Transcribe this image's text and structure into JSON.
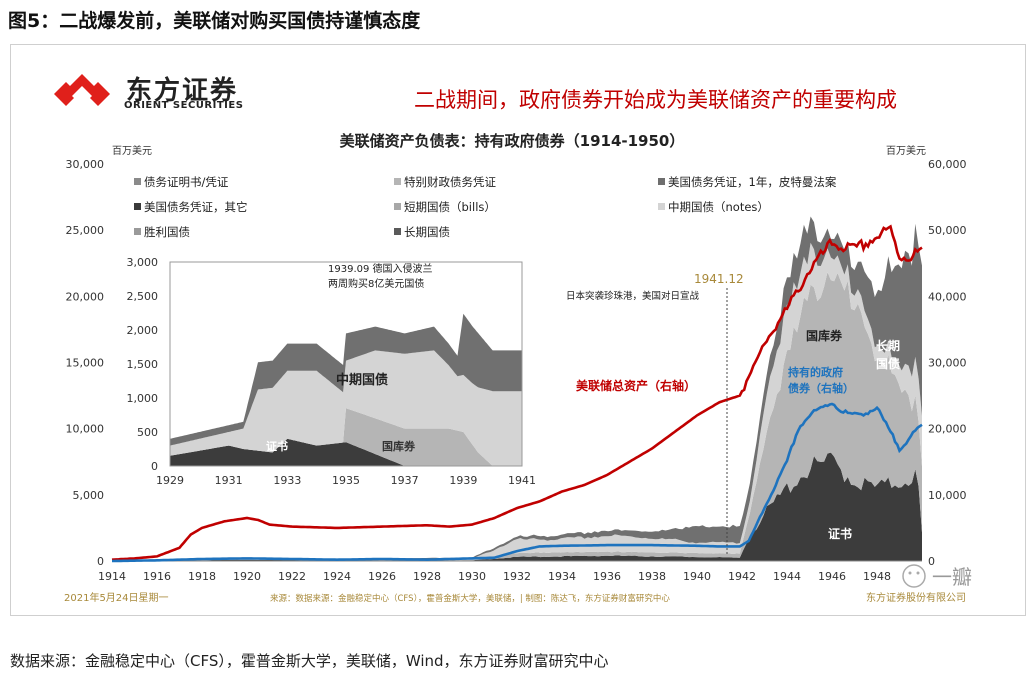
{
  "figure_title": "图5：二战爆发前，美联储对购买国债持谨慎态度",
  "logo": {
    "name_cn": "东方证券",
    "name_en": "ORIENT SECURITIES",
    "icon": "orient-securities-logo-icon",
    "color": "#e0201b"
  },
  "headline": "二战期间，政府债券开始成为美联储资产的重要构成",
  "source_note": "数据来源：金融稳定中心（CFS），霍普金斯大学，美联储，Wind，东方证券财富研究中心",
  "footer": {
    "date": "2021年5月24日星期一",
    "source": "来源：数据来源：金融稳定中心（CFS），霍普金斯大学，美联储，| 制图：陈达飞，东方证券财富研究中心",
    "company": "东方证券股份有限公司"
  },
  "watermark": "一瓣",
  "chart_data": [
    {
      "type": "area",
      "title": "美联储资产负债表：持有政府债券（1914-1950）",
      "left_unit": "百万美元",
      "right_unit": "百万美元",
      "ylim": [
        0,
        30000
      ],
      "y2lim": [
        0,
        60000
      ],
      "xlim": [
        1914,
        1950
      ],
      "x_ticks": [
        1914,
        1916,
        1918,
        1920,
        1922,
        1924,
        1926,
        1928,
        1930,
        1932,
        1934,
        1936,
        1938,
        1940,
        1942,
        1944,
        1946,
        1948
      ],
      "y_ticks": [
        0,
        5000,
        10000,
        15000,
        20000,
        25000,
        30000
      ],
      "y_tick_labels": [
        "0",
        "5,000",
        "10,000",
        "15,000",
        "20,000",
        "25,000",
        "30,000"
      ],
      "y2_ticks": [
        0,
        10000,
        20000,
        30000,
        40000,
        50000,
        60000
      ],
      "y2_tick_labels": [
        "0",
        "10,000",
        "20,000",
        "30,000",
        "40,000",
        "50,000",
        "60,000"
      ],
      "legend": [
        {
          "label": "债务证明书/凭证",
          "color": "#8a8a8a"
        },
        {
          "label": "特别财政债务凭证",
          "color": "#b5b5b5"
        },
        {
          "label": "美国债务凭证，1年，皮特曼法案",
          "color": "#6e6e6e"
        },
        {
          "label": "美国债务凭证，其它",
          "color": "#3a3a3a"
        },
        {
          "label": "短期国债（bills）",
          "color": "#a8a8a8"
        },
        {
          "label": "中期国债（notes）",
          "color": "#d4d4d4"
        },
        {
          "label": "胜利国债",
          "color": "#9a9a9a"
        },
        {
          "label": "长期国债",
          "color": "#5a5a5a"
        }
      ],
      "legend_placement": "top-left",
      "series": [
        {
          "name": "证书",
          "color": "#3c3c3c",
          "x": [
            1914,
            1917,
            1920,
            1925,
            1930,
            1932,
            1936,
            1940,
            1941.9,
            1942.3,
            1943,
            1944,
            1945,
            1946,
            1947,
            1948,
            1949,
            1949.8,
            1950
          ],
          "values": [
            0,
            50,
            100,
            50,
            50,
            300,
            400,
            300,
            250,
            1800,
            3500,
            5500,
            7000,
            7500,
            6000,
            5500,
            6000,
            6500,
            2000
          ]
        },
        {
          "name": "国库券",
          "color": "#b5b5b5",
          "x": [
            1914,
            1930,
            1932,
            1934,
            1936,
            1938,
            1940,
            1941.9,
            1942.3,
            1943,
            1944,
            1945,
            1946,
            1947,
            1948,
            1949,
            1950
          ],
          "values": [
            0,
            0,
            300,
            300,
            300,
            300,
            300,
            300,
            1500,
            5500,
            10000,
            13000,
            14000,
            13000,
            10000,
            7000,
            5000
          ]
        },
        {
          "name": "中期国债",
          "color": "#d4d4d4",
          "x": [
            1914,
            1930,
            1932,
            1934,
            1936,
            1938,
            1940,
            1941.9,
            1942.3,
            1943,
            1944,
            1945,
            1946,
            1947,
            1948,
            1949,
            1950
          ],
          "values": [
            0,
            100,
            1000,
            1000,
            1200,
            1100,
            800,
            800,
            900,
            2500,
            3800,
            3000,
            1500,
            1200,
            1000,
            1500,
            3500
          ]
        },
        {
          "name": "长期国债",
          "color": "#707070",
          "x": [
            1914,
            1930,
            1932,
            1934,
            1936,
            1938,
            1940,
            1941.9,
            1942.3,
            1943,
            1944,
            1945,
            1946,
            1947,
            1948,
            1949,
            1950
          ],
          "values": [
            0,
            100,
            200,
            300,
            400,
            500,
            1200,
            1200,
            1200,
            1500,
            2000,
            2200,
            1500,
            1800,
            4500,
            7000,
            11500
          ]
        }
      ],
      "lines": [
        {
          "name": "美联储总资产（右轴）",
          "axis": "right",
          "color": "#c00000",
          "x": [
            1914,
            1915,
            1916,
            1917,
            1917.5,
            1918,
            1919,
            1920,
            1920.5,
            1921,
            1922,
            1924,
            1926,
            1928,
            1929,
            1930,
            1931,
            1932,
            1933,
            1934,
            1935,
            1936,
            1937,
            1938,
            1939,
            1940,
            1941,
            1941.9,
            1942.5,
            1943,
            1944,
            1945,
            1946,
            1947,
            1948,
            1948.6,
            1949,
            1949.5,
            1950
          ],
          "values": [
            200,
            400,
            700,
            2000,
            4000,
            5000,
            6000,
            6500,
            6200,
            5500,
            5200,
            5000,
            5200,
            5400,
            5200,
            5500,
            6500,
            8000,
            9000,
            10500,
            11500,
            13000,
            15000,
            17000,
            19500,
            22000,
            24000,
            25000,
            29000,
            33000,
            38000,
            44000,
            48000,
            47000,
            49000,
            50000,
            46000,
            46000,
            47000
          ]
        },
        {
          "name": "持有的政府债券（右轴）",
          "axis": "right",
          "color": "#1e73be",
          "x": [
            1914,
            1916,
            1918,
            1920,
            1922,
            1924,
            1926,
            1928,
            1930,
            1931,
            1932,
            1933,
            1934,
            1936,
            1938,
            1940,
            1941,
            1941.9,
            1942.3,
            1943,
            1944,
            1944.5,
            1945,
            1946,
            1946.5,
            1947,
            1948,
            1948.5,
            1949,
            1950
          ],
          "values": [
            0,
            100,
            300,
            400,
            300,
            200,
            300,
            200,
            400,
            500,
            1500,
            2200,
            2300,
            2400,
            2400,
            2300,
            2200,
            2200,
            3000,
            8000,
            15000,
            20000,
            22000,
            24000,
            22500,
            22000,
            23000,
            20000,
            17000,
            20500
          ]
        }
      ],
      "annotations": [
        {
          "text": "1941.12",
          "x": 1941.9
        },
        {
          "text": "日本突袭珍珠港，美国对日宣战",
          "x": 1941.9
        }
      ],
      "series_labels": {
        "notes": "国库券",
        "bonds_long": "长期",
        "bonds_long_2": "国债",
        "cert": "证书",
        "gov_1": "持有的政府",
        "gov_2": "债券（右轴）",
        "total": "美联储总资产（右轴）"
      }
    },
    {
      "type": "area",
      "title": "",
      "xlim": [
        1929,
        1941
      ],
      "ylim": [
        0,
        3000
      ],
      "x_ticks": [
        1929,
        1931,
        1933,
        1935,
        1937,
        1939,
        1941
      ],
      "y_ticks": [
        0,
        500,
        1000,
        1500,
        2000,
        2500,
        3000
      ],
      "y_tick_labels": [
        "0",
        "500",
        "1,000",
        "1,500",
        "2,000",
        "2,500",
        "3,000"
      ],
      "series": [
        {
          "name": "证书",
          "color": "#3c3c3c",
          "x": [
            1929,
            1931,
            1931.5,
            1932.5,
            1933,
            1934,
            1935,
            1937,
            1939,
            1939.5,
            1940,
            1941
          ],
          "values": [
            150,
            300,
            250,
            200,
            400,
            300,
            350,
            0,
            0,
            0,
            0,
            0
          ]
        },
        {
          "name": "国库券",
          "color": "#b5b5b5",
          "x": [
            1929,
            1931,
            1933,
            1934.9,
            1935,
            1937,
            1938.5,
            1939,
            1939.5,
            1940,
            1941
          ],
          "values": [
            0,
            0,
            0,
            0,
            500,
            550,
            550,
            500,
            200,
            0,
            0
          ]
        },
        {
          "name": "中期国债",
          "color": "#d4d4d4",
          "x": [
            1929,
            1931,
            1931.5,
            1932,
            1933,
            1934,
            1935,
            1936,
            1937,
            1938,
            1938.8,
            1939.3,
            1940,
            1941
          ],
          "values": [
            150,
            200,
            300,
            900,
            1000,
            1100,
            700,
            1000,
            1100,
            1150,
            800,
            900,
            1100,
            1100
          ]
        },
        {
          "name": "长期国债",
          "color": "#707070",
          "x": [
            1929,
            1931,
            1931.5,
            1932,
            1933,
            1935,
            1936,
            1937,
            1938,
            1938.8,
            1939,
            1939.5,
            1940,
            1941
          ],
          "values": [
            100,
            100,
            100,
            400,
            400,
            400,
            350,
            300,
            350,
            300,
            900,
            800,
            600,
            600
          ]
        }
      ],
      "labels": {
        "cert": "证书",
        "notes": "中期国债",
        "bills": "国库券"
      },
      "annotations": [
        {
          "text1": "1939.09  德国入侵波兰",
          "text2": "两周购买8亿美元国债"
        }
      ]
    }
  ]
}
